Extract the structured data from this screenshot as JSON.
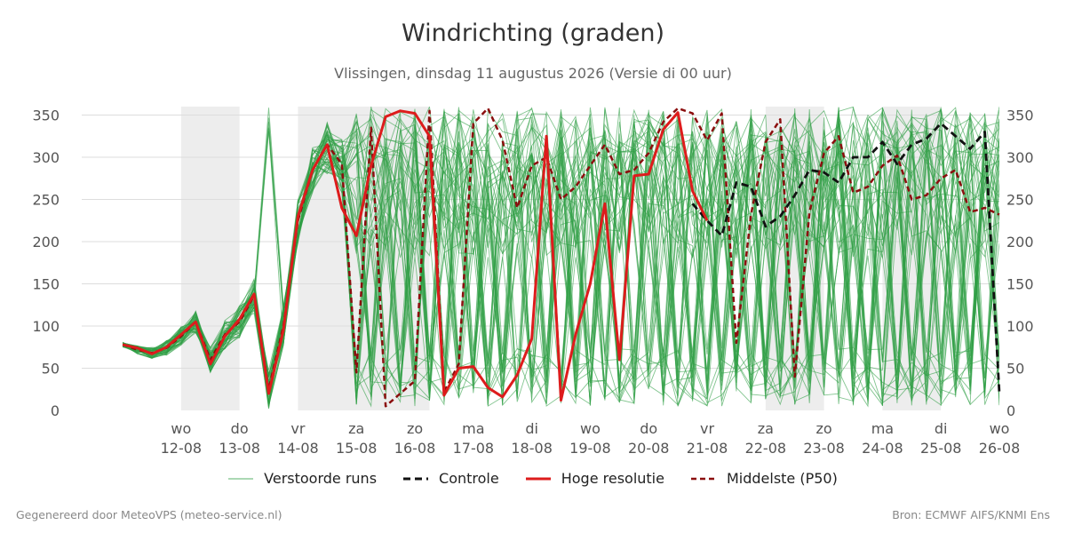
{
  "title": "Windrichting (graden)",
  "subtitle": "Vlissingen, dinsdag 11 augustus 2026 (Versie di 00 uur)",
  "footer": {
    "left": "Gegenereerd door MeteoVPS (meteo-service.nl)",
    "right": "Bron: ECMWF AIFS/KNMI Ens"
  },
  "legend": [
    {
      "key": "ensemble",
      "label": "Verstoorde runs"
    },
    {
      "key": "control",
      "label": "Controle"
    },
    {
      "key": "hires",
      "label": "Hoge resolutie"
    },
    {
      "key": "median",
      "label": "Middelste (P50)"
    }
  ],
  "colors": {
    "ensemble": "#2e9e44",
    "control": "#111111",
    "hires": "#dd1c1c",
    "median": "#8b0e0e",
    "weekend_band": "#ededed",
    "grid": "#dddddd"
  },
  "chart_data": {
    "type": "line",
    "x_unit": "days after Tue 11-08 00:00",
    "xlim": [
      0,
      15
    ],
    "ylim": [
      0,
      360
    ],
    "y_ticks": [
      0,
      50,
      100,
      150,
      200,
      250,
      300,
      350
    ],
    "grid": true,
    "legend_position": "bottom",
    "x_ticks": [
      {
        "x": 1,
        "day": "wo",
        "date": "12-08"
      },
      {
        "x": 2,
        "day": "do",
        "date": "13-08"
      },
      {
        "x": 3,
        "day": "vr",
        "date": "14-08"
      },
      {
        "x": 4,
        "day": "za",
        "date": "15-08"
      },
      {
        "x": 5,
        "day": "zo",
        "date": "16-08"
      },
      {
        "x": 6,
        "day": "ma",
        "date": "17-08"
      },
      {
        "x": 7,
        "day": "di",
        "date": "18-08"
      },
      {
        "x": 8,
        "day": "wo",
        "date": "19-08"
      },
      {
        "x": 9,
        "day": "do",
        "date": "20-08"
      },
      {
        "x": 10,
        "day": "vr",
        "date": "21-08"
      },
      {
        "x": 11,
        "day": "za",
        "date": "22-08"
      },
      {
        "x": 12,
        "day": "zo",
        "date": "23-08"
      },
      {
        "x": 13,
        "day": "ma",
        "date": "24-08"
      },
      {
        "x": 14,
        "day": "di",
        "date": "25-08"
      },
      {
        "x": 15,
        "day": "wo",
        "date": "26-08"
      }
    ],
    "shaded_bands": [
      [
        1,
        2
      ],
      [
        3,
        5.25
      ],
      [
        11,
        12
      ],
      [
        13,
        14
      ]
    ],
    "series": [
      {
        "key": "hires",
        "x": [
          0,
          0.25,
          0.5,
          0.75,
          1,
          1.25,
          1.5,
          1.75,
          2,
          2.25,
          2.5,
          2.75,
          3,
          3.25,
          3.5,
          3.75,
          4,
          4.25,
          4.5,
          4.75,
          5,
          5.25,
          5.5,
          5.75,
          6,
          6.25,
          6.5,
          6.75,
          7,
          7.25,
          7.5,
          7.75,
          8,
          8.25,
          8.5,
          8.75,
          9,
          9.25,
          9.5,
          9.75,
          10
        ],
        "values": [
          78,
          74,
          67,
          75,
          90,
          105,
          55,
          88,
          108,
          138,
          20,
          95,
          230,
          285,
          315,
          240,
          207,
          290,
          348,
          355,
          352,
          325,
          18,
          50,
          52,
          27,
          16,
          42,
          85,
          325,
          12,
          90,
          150,
          245,
          60,
          278,
          280,
          333,
          353,
          260,
          225
        ]
      },
      {
        "key": "control",
        "x": [
          9.75,
          10,
          10.25,
          10.5,
          10.75,
          11,
          11.25,
          11.5,
          11.75,
          12,
          12.25,
          12.5,
          12.75,
          13,
          13.25,
          13.5,
          13.75,
          14,
          14.25,
          14.5,
          14.75,
          15
        ],
        "values": [
          245,
          225,
          207,
          270,
          265,
          218,
          230,
          255,
          285,
          282,
          270,
          300,
          300,
          318,
          292,
          315,
          322,
          340,
          325,
          310,
          330,
          20
        ]
      },
      {
        "key": "median",
        "x": [
          0,
          0.25,
          0.5,
          0.75,
          1,
          1.25,
          1.5,
          1.75,
          2,
          2.25,
          2.5,
          2.75,
          3,
          3.25,
          3.5,
          3.75,
          4,
          4.25,
          4.5,
          4.75,
          5,
          5.25,
          5.5,
          5.75,
          6,
          6.25,
          6.5,
          6.75,
          7,
          7.25,
          7.5,
          7.75,
          8,
          8.25,
          8.5,
          8.75,
          9,
          9.25,
          9.5,
          9.75,
          10,
          10.25,
          10.5,
          10.75,
          11,
          11.25,
          11.5,
          11.75,
          12,
          12.25,
          12.5,
          12.75,
          13,
          13.25,
          13.5,
          13.75,
          14,
          14.25,
          14.5,
          14.75,
          15
        ],
        "values": [
          78,
          72,
          68,
          74,
          88,
          105,
          60,
          90,
          105,
          136,
          25,
          100,
          225,
          285,
          315,
          292,
          45,
          335,
          5,
          20,
          35,
          355,
          22,
          55,
          340,
          358,
          320,
          240,
          290,
          300,
          250,
          265,
          290,
          315,
          280,
          285,
          305,
          342,
          358,
          352,
          320,
          352,
          80,
          232,
          318,
          345,
          40,
          235,
          305,
          325,
          258,
          265,
          290,
          302,
          250,
          255,
          275,
          285,
          235,
          240,
          232
        ]
      }
    ]
  }
}
